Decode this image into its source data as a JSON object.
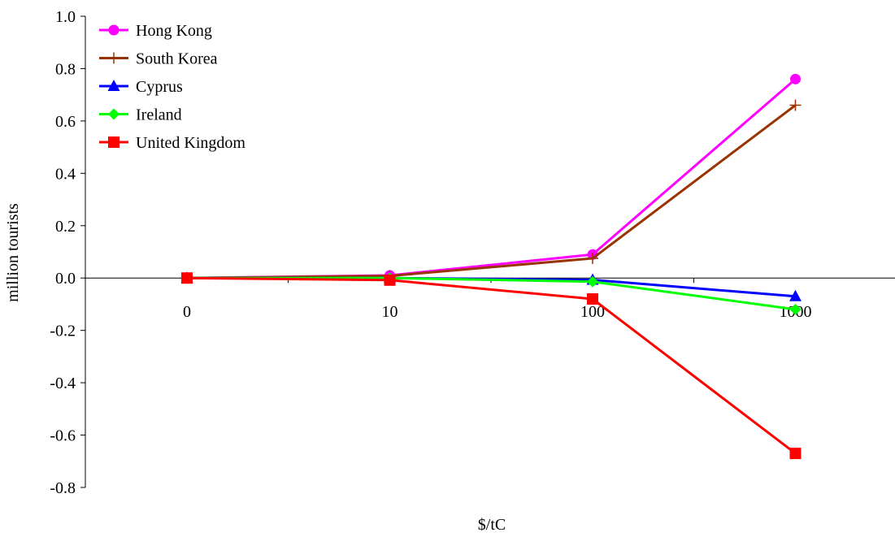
{
  "chart_data": {
    "type": "line",
    "title": "",
    "xlabel": "$/tC",
    "ylabel": "million tourists",
    "categories": [
      "0",
      "10",
      "100",
      "1000"
    ],
    "ylim": [
      -0.8,
      1.0
    ],
    "yticks": [
      1.0,
      0.8,
      0.6,
      0.4,
      0.2,
      0.0,
      -0.2,
      -0.4,
      -0.6,
      -0.8
    ],
    "ytick_labels": [
      "1.0",
      "0.8",
      "0.6",
      "0.4",
      "0.2",
      "0.0",
      "-0.2",
      "-0.4",
      "-0.6",
      "-0.8"
    ],
    "grid": false,
    "legend_position": "top-left",
    "series": [
      {
        "name": "Hong Kong",
        "values": [
          0.0,
          0.01,
          0.09,
          0.76
        ],
        "color": "#ff00ff",
        "marker": "circle"
      },
      {
        "name": "South Korea",
        "values": [
          0.0,
          0.008,
          0.075,
          0.66
        ],
        "color": "#993300",
        "marker": "plus"
      },
      {
        "name": "Cyprus",
        "values": [
          0.0,
          0.0,
          -0.007,
          -0.07
        ],
        "color": "#0000ff",
        "marker": "triangle"
      },
      {
        "name": "Ireland",
        "values": [
          0.0,
          0.0,
          -0.014,
          -0.12
        ],
        "color": "#00ff00",
        "marker": "diamond"
      },
      {
        "name": "United Kingdom",
        "values": [
          0.0,
          -0.008,
          -0.08,
          -0.67
        ],
        "color": "#ff0000",
        "marker": "square"
      }
    ]
  }
}
